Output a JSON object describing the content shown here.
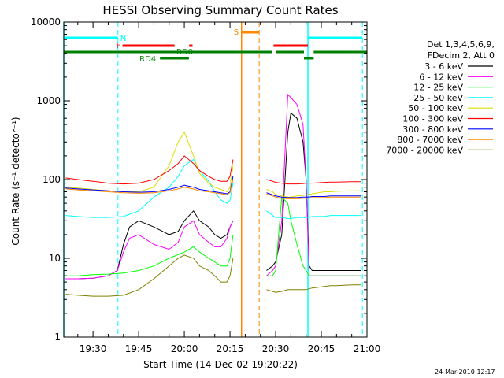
{
  "chart_data": {
    "type": "line",
    "title": "HESSI Observing Summary Count Rates",
    "xlabel": "Start Time (14-Dec-02 19:20:22)",
    "ylabel": "Count Rate (s⁻¹ detector⁻¹)",
    "y_scale": "log",
    "ylim": [
      1,
      10000
    ],
    "xlim_minutes_after_19_00": [
      20.4,
      120
    ],
    "x_tick_labels": [
      "19:30",
      "19:45",
      "20:00",
      "20:15",
      "20:30",
      "20:45",
      "21:00"
    ],
    "x_tick_minutes": [
      30,
      45,
      60,
      75,
      90,
      105,
      120
    ],
    "y_tick_labels": [
      "1",
      "10",
      "100",
      "1000",
      "10000"
    ],
    "y_tick_values": [
      1,
      10,
      100,
      1000,
      10000
    ],
    "legend_title": [
      "Det 1,3,4,5,6,9,",
      "FDecim 2, Att 0"
    ],
    "series": [
      {
        "name": "3 - 6 keV",
        "color": "#000000",
        "x": [
          21,
          25,
          30,
          35,
          38,
          40,
          42,
          45,
          50,
          55,
          58,
          60,
          63,
          65,
          68,
          70,
          72,
          74,
          75,
          76,
          78,
          80,
          82,
          85,
          87,
          89,
          90,
          92,
          94,
          95,
          97,
          99,
          100,
          101,
          102,
          104,
          106,
          108,
          110,
          115,
          118
        ],
        "y": [
          5.5,
          5.5,
          5.6,
          6,
          7,
          15,
          25,
          30,
          25,
          20,
          22,
          30,
          40,
          30,
          25,
          20,
          18,
          20,
          25,
          30,
          null,
          null,
          null,
          null,
          7,
          8,
          9,
          20,
          400,
          700,
          600,
          300,
          100,
          8,
          7,
          7,
          7,
          7,
          7,
          7,
          7
        ]
      },
      {
        "name": "6 - 12 keV",
        "color": "#ff00ff",
        "x": [
          21,
          25,
          30,
          35,
          38,
          40,
          42,
          45,
          50,
          55,
          58,
          60,
          63,
          65,
          68,
          70,
          72,
          74,
          75,
          76,
          78,
          80,
          82,
          85,
          87,
          89,
          90,
          92,
          94,
          95,
          97,
          99,
          100,
          101,
          102,
          104,
          106,
          108,
          110,
          115,
          118
        ],
        "y": [
          5.5,
          5.5,
          5.6,
          6,
          7,
          12,
          18,
          20,
          15,
          13,
          16,
          25,
          30,
          20,
          16,
          14,
          14,
          18,
          25,
          30,
          null,
          null,
          null,
          null,
          6,
          7,
          8,
          30,
          1200,
          1100,
          900,
          500,
          100,
          6,
          6,
          6,
          6,
          6,
          6,
          6,
          6
        ]
      },
      {
        "name": "12 - 25 keV",
        "color": "#00ff00",
        "x": [
          21,
          25,
          30,
          35,
          40,
          45,
          50,
          55,
          60,
          63,
          65,
          68,
          70,
          72,
          74,
          75,
          76,
          78,
          80,
          82,
          85,
          87,
          89,
          90,
          92,
          94,
          95,
          97,
          99,
          100,
          101,
          102,
          104,
          106,
          108,
          110,
          115,
          118
        ],
        "y": [
          6,
          6,
          6.2,
          6.3,
          6.5,
          7,
          8,
          10,
          12,
          14,
          12,
          10,
          9,
          8,
          8,
          10,
          20,
          null,
          null,
          null,
          null,
          6,
          6,
          7,
          60,
          50,
          30,
          15,
          8,
          7,
          6,
          6,
          6,
          6,
          6,
          6,
          6,
          6
        ]
      },
      {
        "name": "25 - 50 keV",
        "color": "#00ffff",
        "x": [
          21,
          25,
          30,
          35,
          40,
          45,
          50,
          55,
          58,
          60,
          63,
          65,
          68,
          70,
          72,
          74,
          75,
          76,
          78,
          80,
          82,
          85,
          87,
          89,
          90,
          92,
          94,
          95,
          97,
          99,
          100,
          101,
          102,
          104,
          106,
          108,
          110,
          115,
          118
        ],
        "y": [
          35,
          34,
          33,
          33,
          34,
          40,
          60,
          80,
          110,
          150,
          180,
          130,
          95,
          70,
          55,
          50,
          55,
          90,
          null,
          null,
          null,
          null,
          40,
          35,
          33,
          33,
          32,
          32,
          33,
          33,
          33,
          33,
          34,
          34,
          34,
          35,
          35,
          35,
          35
        ]
      },
      {
        "name": "50 - 100 keV",
        "color": "#dddd00",
        "x": [
          21,
          25,
          30,
          35,
          40,
          45,
          50,
          55,
          58,
          60,
          63,
          65,
          68,
          70,
          72,
          74,
          75,
          76,
          78,
          80,
          82,
          85,
          87,
          89,
          90,
          92,
          94,
          95,
          97,
          99,
          100,
          101,
          102,
          104,
          106,
          108,
          110,
          115,
          118
        ],
        "y": [
          80,
          78,
          75,
          72,
          70,
          70,
          80,
          150,
          300,
          400,
          200,
          120,
          90,
          80,
          75,
          70,
          80,
          150,
          null,
          null,
          null,
          null,
          75,
          70,
          65,
          62,
          60,
          60,
          62,
          63,
          64,
          65,
          66,
          68,
          70,
          70,
          71,
          72,
          72
        ]
      },
      {
        "name": "100 - 300 keV",
        "color": "#ff0000",
        "x": [
          21,
          25,
          30,
          35,
          40,
          45,
          50,
          55,
          58,
          60,
          63,
          65,
          68,
          70,
          72,
          74,
          75,
          76,
          78,
          80,
          82,
          85,
          87,
          89,
          90,
          92,
          94,
          95,
          97,
          99,
          100,
          101,
          102,
          104,
          106,
          108,
          110,
          115,
          118
        ],
        "y": [
          105,
          100,
          95,
          90,
          88,
          90,
          100,
          130,
          160,
          200,
          160,
          130,
          110,
          100,
          95,
          95,
          110,
          180,
          null,
          null,
          null,
          null,
          100,
          95,
          92,
          90,
          88,
          88,
          88,
          89,
          90,
          90,
          90,
          91,
          92,
          93,
          93,
          94,
          94
        ]
      },
      {
        "name": "300 - 800 keV",
        "color": "#0000ff",
        "x": [
          21,
          25,
          30,
          35,
          40,
          45,
          50,
          55,
          58,
          60,
          63,
          65,
          68,
          70,
          72,
          74,
          75,
          76,
          78,
          80,
          82,
          85,
          87,
          89,
          90,
          92,
          94,
          95,
          97,
          99,
          100,
          101,
          102,
          104,
          106,
          108,
          110,
          115,
          118
        ],
        "y": [
          78,
          76,
          74,
          72,
          70,
          69,
          70,
          75,
          80,
          85,
          80,
          75,
          72,
          70,
          68,
          66,
          70,
          110,
          null,
          null,
          null,
          null,
          68,
          64,
          62,
          60,
          59,
          59,
          59,
          60,
          60,
          60,
          61,
          61,
          61,
          62,
          62,
          62,
          62
        ]
      },
      {
        "name": "800 - 7000 keV",
        "color": "#ff8800",
        "x": [
          21,
          25,
          30,
          35,
          40,
          45,
          50,
          55,
          58,
          60,
          63,
          65,
          68,
          70,
          72,
          74,
          75,
          76,
          78,
          80,
          82,
          85,
          87,
          89,
          90,
          92,
          94,
          95,
          97,
          99,
          100,
          101,
          102,
          104,
          106,
          108,
          110,
          115,
          118
        ],
        "y": [
          76,
          74,
          72,
          70,
          68,
          67,
          68,
          72,
          76,
          80,
          76,
          72,
          70,
          68,
          66,
          64,
          68,
          100,
          null,
          null,
          null,
          null,
          66,
          62,
          60,
          58,
          57,
          57,
          57,
          58,
          58,
          58,
          59,
          59,
          59,
          60,
          60,
          60,
          60
        ]
      },
      {
        "name": "7000 - 20000 keV",
        "color": "#808000",
        "x": [
          21,
          25,
          30,
          35,
          40,
          45,
          50,
          55,
          58,
          60,
          63,
          65,
          68,
          70,
          72,
          74,
          75,
          76,
          78,
          80,
          82,
          85,
          87,
          89,
          90,
          92,
          94,
          95,
          97,
          99,
          100,
          101,
          102,
          104,
          106,
          108,
          110,
          115,
          118
        ],
        "y": [
          3.5,
          3.4,
          3.3,
          3.3,
          3.4,
          4,
          5.5,
          8,
          10,
          11,
          10,
          8,
          7,
          6,
          5,
          5,
          6,
          10,
          null,
          null,
          null,
          null,
          4,
          3.8,
          3.7,
          3.8,
          4,
          4,
          4,
          4,
          4,
          4.1,
          4.2,
          4.3,
          4.4,
          4.5,
          4.5,
          4.6,
          4.6
        ]
      }
    ],
    "annotations": {
      "night_label": "N",
      "saa_label": "S",
      "flare_label": "F",
      "rd0_label": "RD0",
      "rd4_label": "RD4",
      "night_intervals": [
        [
          20.4,
          38.2
        ],
        [
          100.6,
          118.5
        ]
      ],
      "saa_intervals": [
        [
          78.8,
          84.6
        ]
      ],
      "flare_intervals": [
        [
          39.7,
          56.8
        ],
        [
          61.6,
          62.7
        ],
        [
          89.3,
          100.6
        ]
      ],
      "rd0_intervals": [
        [
          20.4,
          88.7
        ],
        [
          90.2,
          99.3
        ],
        [
          102.5,
          120
        ]
      ],
      "rd4_intervals": [
        [
          52,
          61.5
        ],
        [
          99.3,
          102.5
        ]
      ],
      "night_marker_lines": [
        38.2,
        118.5
      ],
      "day_marker_lines": [
        20.4,
        100.6
      ],
      "saa_marker_lines": [
        78.8,
        84.6
      ]
    },
    "grid": false,
    "legend_placement": "right"
  },
  "timestamp": "24-Mar-2010 12:17",
  "colors": {
    "night": "#00ffff",
    "saa": "#ff8800",
    "flare": "#ff0000",
    "decimation": "#008000"
  }
}
